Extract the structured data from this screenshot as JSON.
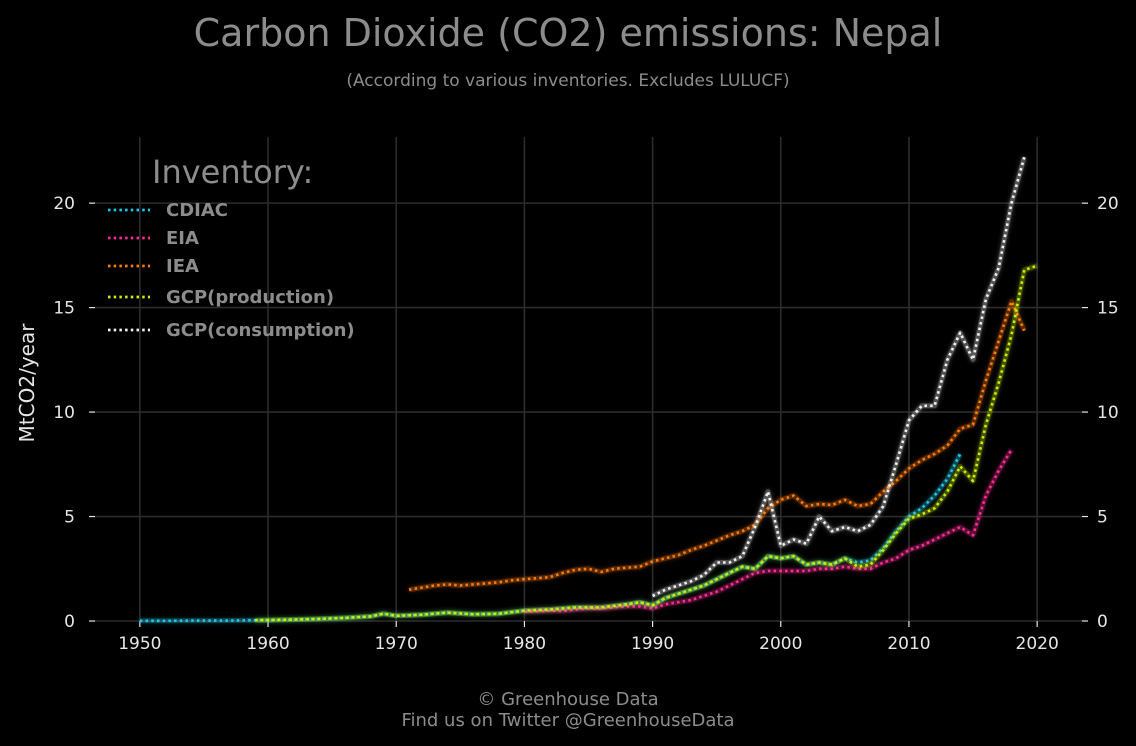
{
  "chart_data": {
    "type": "line",
    "title": "Carbon Dioxide (CO2) emissions: Nepal",
    "subtitle": "(According to various inventories. Excludes LULUCF)",
    "xlabel": "",
    "ylabel": "MtCO2/year",
    "xlim": [
      1946.5,
      2023.5
    ],
    "ylim": [
      0,
      23.5
    ],
    "x_ticks": [
      "1950",
      "1960",
      "1970",
      "1980",
      "1990",
      "2000",
      "2010",
      "2020"
    ],
    "y_ticks": [
      "0",
      "5",
      "10",
      "15",
      "20"
    ],
    "grid": true,
    "legend": {
      "title": "Inventory:",
      "placement": "top-left"
    },
    "colors": {
      "background": "#000000",
      "CDIAC": "#1ec8e8",
      "EIA": "#ff2d95",
      "IEA": "#ff7a0a",
      "GCP(production)": "#c8f000",
      "GCP(consumption)": "#f2f2f2"
    },
    "series": [
      {
        "name": "CDIAC",
        "x": [
          1950,
          1952,
          1954,
          1956,
          1958,
          1960,
          1962,
          1964,
          1966,
          1968,
          1969,
          1970,
          1972,
          1974,
          1976,
          1978,
          1980,
          1982,
          1984,
          1986,
          1988,
          1989,
          1990,
          1991,
          1992,
          1993,
          1994,
          1995,
          1996,
          1997,
          1998,
          1999,
          2000,
          2001,
          2002,
          2003,
          2004,
          2005,
          2006,
          2007,
          2008,
          2009,
          2010,
          2011,
          2012,
          2013,
          2014
        ],
        "y": [
          0.01,
          0.01,
          0.02,
          0.02,
          0.03,
          0.04,
          0.06,
          0.1,
          0.15,
          0.22,
          0.35,
          0.25,
          0.3,
          0.4,
          0.32,
          0.35,
          0.5,
          0.55,
          0.65,
          0.65,
          0.8,
          0.9,
          0.75,
          1.1,
          1.3,
          1.5,
          1.7,
          2.0,
          2.3,
          2.6,
          2.5,
          3.1,
          3.0,
          3.1,
          2.7,
          2.8,
          2.7,
          3.0,
          2.8,
          2.9,
          3.5,
          4.3,
          5.0,
          5.4,
          6.0,
          6.8,
          8.0
        ]
      },
      {
        "name": "EIA",
        "x": [
          1980,
          1981,
          1982,
          1983,
          1984,
          1985,
          1986,
          1987,
          1988,
          1989,
          1990,
          1991,
          1992,
          1993,
          1994,
          1995,
          1996,
          1997,
          1998,
          1999,
          2000,
          2001,
          2002,
          2003,
          2004,
          2005,
          2006,
          2007,
          2008,
          2009,
          2010,
          2011,
          2012,
          2013,
          2014,
          2015,
          2016,
          2017,
          2018
        ],
        "y": [
          0.45,
          0.47,
          0.5,
          0.48,
          0.55,
          0.6,
          0.6,
          0.65,
          0.7,
          0.7,
          0.6,
          0.8,
          0.9,
          1.0,
          1.2,
          1.4,
          1.7,
          2.0,
          2.3,
          2.4,
          2.4,
          2.4,
          2.4,
          2.5,
          2.5,
          2.6,
          2.5,
          2.5,
          2.8,
          3.0,
          3.4,
          3.6,
          3.9,
          4.2,
          4.5,
          4.1,
          6.0,
          7.2,
          8.2
        ]
      },
      {
        "name": "IEA",
        "x": [
          1971,
          1972,
          1973,
          1974,
          1975,
          1976,
          1977,
          1978,
          1979,
          1980,
          1981,
          1982,
          1983,
          1984,
          1985,
          1986,
          1987,
          1988,
          1989,
          1990,
          1991,
          1992,
          1993,
          1994,
          1995,
          1996,
          1997,
          1998,
          1999,
          2000,
          2001,
          2002,
          2003,
          2004,
          2005,
          2006,
          2007,
          2008,
          2009,
          2010,
          2011,
          2012,
          2013,
          2014,
          2015,
          2016,
          2017,
          2018,
          2019
        ],
        "y": [
          1.5,
          1.6,
          1.7,
          1.75,
          1.7,
          1.75,
          1.8,
          1.85,
          1.95,
          2.0,
          2.05,
          2.1,
          2.3,
          2.45,
          2.5,
          2.35,
          2.5,
          2.55,
          2.6,
          2.85,
          3.0,
          3.15,
          3.4,
          3.6,
          3.85,
          4.1,
          4.3,
          4.6,
          5.4,
          5.8,
          6.0,
          5.5,
          5.6,
          5.55,
          5.8,
          5.5,
          5.6,
          6.2,
          6.7,
          7.3,
          7.7,
          8.0,
          8.4,
          9.2,
          9.4,
          11.5,
          13.4,
          15.3,
          13.9
        ]
      },
      {
        "name": "GCP(production)",
        "x": [
          1959,
          1960,
          1962,
          1964,
          1966,
          1968,
          1969,
          1970,
          1972,
          1974,
          1976,
          1978,
          1980,
          1982,
          1984,
          1986,
          1988,
          1989,
          1990,
          1991,
          1992,
          1993,
          1994,
          1995,
          1996,
          1997,
          1998,
          1999,
          2000,
          2001,
          2002,
          2003,
          2004,
          2005,
          2006,
          2007,
          2008,
          2009,
          2010,
          2011,
          2012,
          2013,
          2014,
          2015,
          2016,
          2017,
          2018,
          2019,
          2020
        ],
        "y": [
          0.04,
          0.05,
          0.07,
          0.1,
          0.15,
          0.22,
          0.35,
          0.25,
          0.3,
          0.4,
          0.32,
          0.35,
          0.5,
          0.55,
          0.65,
          0.65,
          0.8,
          0.9,
          0.75,
          1.1,
          1.3,
          1.5,
          1.7,
          2.0,
          2.3,
          2.6,
          2.5,
          3.1,
          3.0,
          3.1,
          2.7,
          2.8,
          2.7,
          3.0,
          2.6,
          2.7,
          3.4,
          4.2,
          4.9,
          5.1,
          5.4,
          6.2,
          7.4,
          6.7,
          9.4,
          11.4,
          13.7,
          16.8,
          17.0
        ]
      },
      {
        "name": "GCP(consumption)",
        "x": [
          1990,
          1991,
          1992,
          1993,
          1994,
          1995,
          1996,
          1997,
          1998,
          1999,
          2000,
          2001,
          2002,
          2003,
          2004,
          2005,
          2006,
          2007,
          2008,
          2009,
          2010,
          2011,
          2012,
          2013,
          2014,
          2015,
          2016,
          2017,
          2018,
          2019
        ],
        "y": [
          1.2,
          1.5,
          1.7,
          1.9,
          2.2,
          2.8,
          2.8,
          3.1,
          4.5,
          6.2,
          3.6,
          3.9,
          3.7,
          5.0,
          4.3,
          4.5,
          4.3,
          4.6,
          5.5,
          7.5,
          9.6,
          10.3,
          10.3,
          12.5,
          13.8,
          12.5,
          15.4,
          16.9,
          20.0,
          22.2
        ]
      }
    ],
    "caption": [
      "© Greenhouse Data",
      "Find us on Twitter @GreenhouseData"
    ]
  }
}
